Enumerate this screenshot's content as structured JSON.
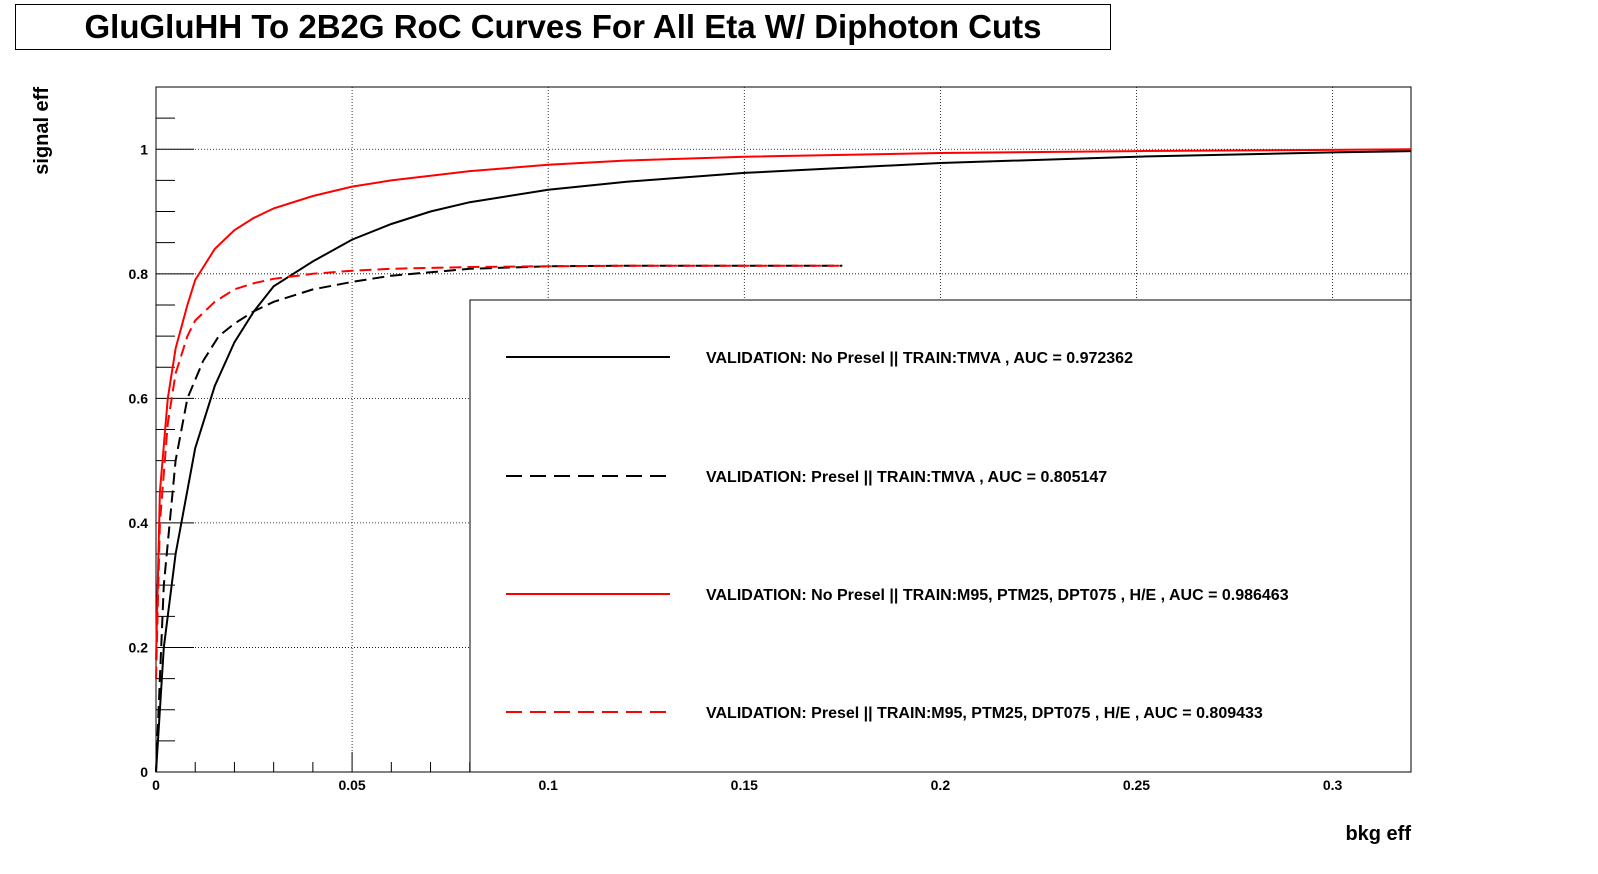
{
  "chart_data": {
    "type": "line",
    "title": "GluGluHH To 2B2G RoC Curves For All Eta W/ Diphoton Cuts",
    "xlabel": "bkg eff",
    "ylabel": "signal eff",
    "xlim": [
      0,
      0.32
    ],
    "ylim": [
      0,
      1.1
    ],
    "x_ticks": [
      "0",
      "0.05",
      "0.1",
      "0.15",
      "0.2",
      "0.25",
      "0.3"
    ],
    "y_ticks": [
      "0",
      "0.2",
      "0.4",
      "0.6",
      "0.8",
      "1"
    ],
    "grid": true,
    "legend_position": "bottom-right",
    "series": [
      {
        "name": "VALIDATION: No Presel || TRAIN:TMVA , AUC = 0.972362",
        "color": "#000000",
        "style": "solid",
        "x": [
          0,
          0.002,
          0.005,
          0.01,
          0.015,
          0.02,
          0.025,
          0.03,
          0.035,
          0.04,
          0.05,
          0.06,
          0.07,
          0.08,
          0.1,
          0.12,
          0.15,
          0.2,
          0.25,
          0.3,
          0.32
        ],
        "y": [
          0,
          0.2,
          0.35,
          0.52,
          0.62,
          0.69,
          0.74,
          0.78,
          0.8,
          0.82,
          0.855,
          0.88,
          0.9,
          0.915,
          0.935,
          0.948,
          0.962,
          0.978,
          0.988,
          0.995,
          0.997
        ]
      },
      {
        "name": "VALIDATION: Presel || TRAIN:TMVA , AUC = 0.805147",
        "color": "#000000",
        "style": "dashed",
        "x": [
          0,
          0.002,
          0.005,
          0.008,
          0.012,
          0.016,
          0.02,
          0.025,
          0.03,
          0.04,
          0.05,
          0.06,
          0.08,
          0.1,
          0.12,
          0.15,
          0.175
        ],
        "y": [
          0,
          0.3,
          0.5,
          0.6,
          0.66,
          0.7,
          0.72,
          0.74,
          0.755,
          0.775,
          0.787,
          0.797,
          0.808,
          0.812,
          0.813,
          0.813,
          0.813
        ]
      },
      {
        "name": "VALIDATION: No Presel || TRAIN:M95, PTM25, DPT075 , H/E , AUC = 0.986463",
        "color": "#ff0000",
        "style": "solid",
        "x": [
          0,
          0.001,
          0.003,
          0.005,
          0.008,
          0.01,
          0.015,
          0.02,
          0.025,
          0.03,
          0.04,
          0.05,
          0.06,
          0.08,
          0.1,
          0.12,
          0.15,
          0.2,
          0.25,
          0.3,
          0.32
        ],
        "y": [
          0.18,
          0.45,
          0.6,
          0.68,
          0.75,
          0.79,
          0.84,
          0.87,
          0.89,
          0.905,
          0.925,
          0.94,
          0.95,
          0.965,
          0.975,
          0.982,
          0.988,
          0.994,
          0.997,
          0.999,
          1.0
        ]
      },
      {
        "name": "VALIDATION: Presel || TRAIN:M95, PTM25, DPT075 , H/E , AUC = 0.809433",
        "color": "#ff0000",
        "style": "dashed",
        "x": [
          0,
          0.001,
          0.003,
          0.005,
          0.008,
          0.01,
          0.015,
          0.02,
          0.025,
          0.03,
          0.04,
          0.05,
          0.06,
          0.08,
          0.1,
          0.12,
          0.15,
          0.175
        ],
        "y": [
          0.15,
          0.4,
          0.56,
          0.64,
          0.7,
          0.725,
          0.755,
          0.775,
          0.785,
          0.792,
          0.8,
          0.805,
          0.808,
          0.811,
          0.812,
          0.813,
          0.813,
          0.813
        ]
      }
    ]
  }
}
